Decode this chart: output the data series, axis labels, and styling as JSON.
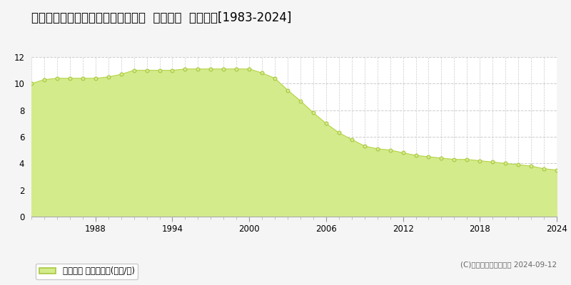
{
  "title": "北海道小樽市赤岩１丁目２７番２外  地価公示  地価推移[1983-2024]",
  "years": [
    1983,
    1984,
    1985,
    1986,
    1987,
    1988,
    1989,
    1990,
    1991,
    1992,
    1993,
    1994,
    1995,
    1996,
    1997,
    1998,
    1999,
    2000,
    2001,
    2002,
    2003,
    2004,
    2005,
    2006,
    2007,
    2008,
    2009,
    2010,
    2011,
    2012,
    2013,
    2014,
    2015,
    2016,
    2017,
    2018,
    2019,
    2020,
    2021,
    2022,
    2023,
    2024
  ],
  "values": [
    10.0,
    10.3,
    10.4,
    10.4,
    10.4,
    10.4,
    10.5,
    10.7,
    11.0,
    11.0,
    11.0,
    11.0,
    11.1,
    11.1,
    11.1,
    11.1,
    11.1,
    11.1,
    10.8,
    10.4,
    9.5,
    8.7,
    7.8,
    7.0,
    6.3,
    5.8,
    5.3,
    5.1,
    5.0,
    4.8,
    4.6,
    4.5,
    4.4,
    4.3,
    4.3,
    4.2,
    4.1,
    4.0,
    3.9,
    3.8,
    3.6,
    3.5
  ],
  "fill_color": "#d4eb8c",
  "line_color": "#b8d44a",
  "marker_facecolor": "#d4eb8c",
  "marker_edgecolor": "#a8c840",
  "bg_color": "#f5f5f5",
  "plot_bg_color": "#ffffff",
  "grid_color_y": "#cccccc",
  "grid_color_x": "#cccccc",
  "ylim": [
    0,
    12
  ],
  "yticks": [
    0,
    2,
    4,
    6,
    8,
    10,
    12
  ],
  "xtick_major_positions": [
    1988,
    1994,
    2000,
    2006,
    2012,
    2018,
    2024
  ],
  "xtick_major_labels": [
    "1988",
    "1994",
    "2000",
    "2006",
    "2012",
    "2018",
    "2024"
  ],
  "xlim_left": 1983,
  "xlim_right": 2024,
  "legend_label": "地価公示 平均坪単価(万円/坪)",
  "copyright_text": "(C)土地価格ドットコム 2024-09-12",
  "title_fontsize": 12,
  "axis_fontsize": 8.5,
  "legend_fontsize": 8.5,
  "copyright_fontsize": 7.5
}
